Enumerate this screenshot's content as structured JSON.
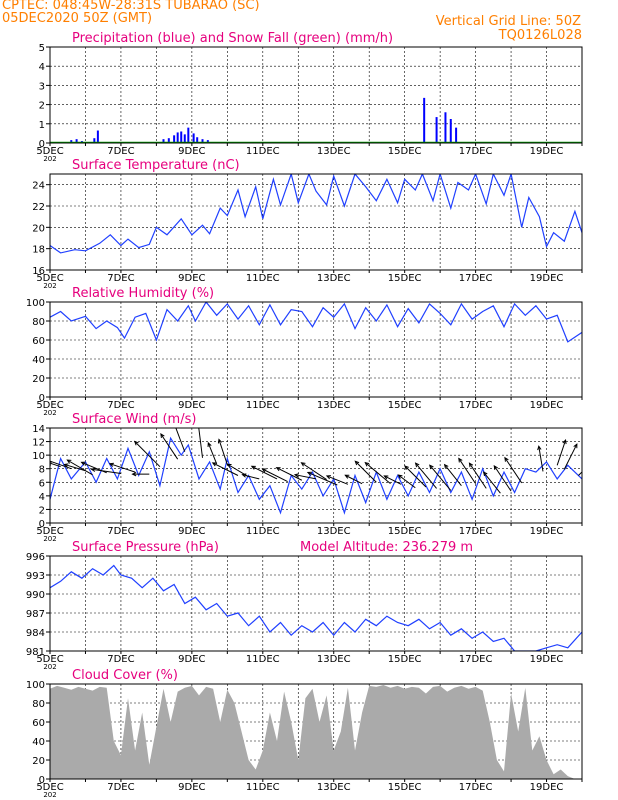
{
  "header": {
    "line1": "CPTEC:   048:45W-28:31S  TUBARAO (SC)",
    "line2": "05DEC2020 50Z (GMT)",
    "grid_note": "Vertical Grid Line: 50Z",
    "code": "TQ0126L028",
    "color": "#ff7f00"
  },
  "x_axis": {
    "start_label": "5DEC",
    "tick_labels": [
      "5DEC",
      "7DEC",
      "9DEC",
      "11DEC",
      "13DEC",
      "15DEC",
      "17DEC",
      "19DEC"
    ],
    "year_stub": "202",
    "range_days": [
      5,
      20
    ]
  },
  "colors": {
    "title": "#e6007e",
    "precip": "#0000ff",
    "snow": "#00a000",
    "line": "#2040ff",
    "wind_arrow": "#000000",
    "cloud": "#aaaaaa",
    "year_stub": "#ff7f00"
  },
  "chart_data": [
    {
      "id": "precip",
      "type": "bar",
      "title": "Precipitation (blue) and Snow Fall (green) (mm/h)",
      "ylim": [
        0,
        5
      ],
      "yticks": [
        0,
        1,
        2,
        3,
        4,
        5
      ],
      "grid": true,
      "precip": [
        [
          5.6,
          0.15
        ],
        [
          5.75,
          0.2
        ],
        [
          5.9,
          0.1
        ],
        [
          6.25,
          0.25
        ],
        [
          6.35,
          0.65
        ],
        [
          8.2,
          0.2
        ],
        [
          8.35,
          0.25
        ],
        [
          8.5,
          0.4
        ],
        [
          8.6,
          0.55
        ],
        [
          8.7,
          0.6
        ],
        [
          8.8,
          0.45
        ],
        [
          8.9,
          0.8
        ],
        [
          9.05,
          0.5
        ],
        [
          9.15,
          0.3
        ],
        [
          9.3,
          0.2
        ],
        [
          9.45,
          0.15
        ],
        [
          15.55,
          2.35
        ],
        [
          15.9,
          1.35
        ],
        [
          16.15,
          1.6
        ],
        [
          16.3,
          1.25
        ],
        [
          16.45,
          0.8
        ]
      ],
      "snow": []
    },
    {
      "id": "temp",
      "type": "line",
      "title": "Surface Temperature (nC)",
      "ylim": [
        16,
        25
      ],
      "yticks": [
        16,
        18,
        20,
        22,
        24
      ],
      "grid": true,
      "x": [
        5.0,
        5.3,
        5.7,
        6.0,
        6.4,
        6.7,
        7.0,
        7.2,
        7.5,
        7.8,
        8.0,
        8.3,
        8.7,
        9.0,
        9.3,
        9.5,
        9.8,
        10.0,
        10.3,
        10.5,
        10.8,
        11.0,
        11.3,
        11.5,
        11.8,
        12.0,
        12.3,
        12.5,
        12.8,
        13.0,
        13.3,
        13.6,
        13.9,
        14.2,
        14.5,
        14.8,
        15.0,
        15.3,
        15.5,
        15.8,
        16.0,
        16.3,
        16.5,
        16.8,
        17.0,
        17.3,
        17.5,
        17.8,
        18.0,
        18.3,
        18.5,
        18.8,
        19.0,
        19.2,
        19.5,
        19.8,
        20.0
      ],
      "y": [
        18.3,
        17.6,
        17.9,
        17.8,
        18.5,
        19.3,
        18.3,
        18.9,
        18.1,
        18.4,
        20.0,
        19.3,
        20.8,
        19.3,
        20.2,
        19.4,
        21.8,
        21.1,
        23.5,
        21.0,
        23.8,
        20.8,
        24.5,
        22.1,
        25.5,
        22.3,
        26.0,
        23.4,
        22.1,
        24.8,
        22.0,
        26.5,
        23.8,
        22.5,
        24.5,
        22.3,
        24.5,
        23.5,
        25.0,
        22.5,
        25.8,
        21.8,
        24.2,
        23.5,
        25.0,
        22.2,
        26.0,
        23.0,
        26.5,
        20.0,
        22.8,
        21.0,
        18.2,
        19.5,
        18.7,
        21.5,
        19.5
      ]
    },
    {
      "id": "rh",
      "type": "line",
      "title": "Relative Humidity (%)",
      "ylim": [
        0,
        100
      ],
      "yticks": [
        0,
        20,
        40,
        60,
        80,
        100
      ],
      "grid": true,
      "x": [
        5.0,
        5.3,
        5.6,
        6.0,
        6.3,
        6.6,
        6.9,
        7.1,
        7.4,
        7.7,
        8.0,
        8.3,
        8.6,
        8.9,
        9.1,
        9.4,
        9.7,
        10.0,
        10.3,
        10.6,
        10.9,
        11.2,
        11.5,
        11.8,
        12.1,
        12.4,
        12.7,
        13.0,
        13.3,
        13.6,
        13.9,
        14.2,
        14.5,
        14.8,
        15.1,
        15.4,
        15.7,
        16.0,
        16.3,
        16.6,
        16.9,
        17.2,
        17.5,
        17.8,
        18.1,
        18.4,
        18.7,
        19.0,
        19.3,
        19.6,
        20.0
      ],
      "y": [
        84,
        90,
        80,
        85,
        72,
        80,
        73,
        62,
        84,
        88,
        60,
        92,
        80,
        96,
        80,
        100,
        86,
        98,
        82,
        96,
        76,
        97,
        76,
        92,
        90,
        74,
        94,
        84,
        98,
        72,
        94,
        80,
        97,
        74,
        93,
        78,
        98,
        88,
        76,
        98,
        82,
        90,
        96,
        74,
        98,
        86,
        96,
        82,
        86,
        58,
        68
      ]
    },
    {
      "id": "wind",
      "type": "line",
      "title": "Surface Wind (m/s)",
      "ylim": [
        0,
        14
      ],
      "yticks": [
        0,
        2,
        4,
        6,
        8,
        10,
        12,
        14
      ],
      "grid": true,
      "x": [
        5.0,
        5.3,
        5.6,
        6.0,
        6.3,
        6.6,
        6.9,
        7.2,
        7.5,
        7.8,
        8.1,
        8.4,
        8.7,
        8.9,
        9.2,
        9.5,
        9.8,
        10.0,
        10.3,
        10.6,
        10.9,
        11.2,
        11.5,
        11.8,
        12.1,
        12.4,
        12.7,
        13.0,
        13.3,
        13.6,
        13.9,
        14.2,
        14.5,
        14.8,
        15.1,
        15.4,
        15.7,
        16.0,
        16.3,
        16.6,
        16.9,
        17.2,
        17.5,
        17.8,
        18.1,
        18.4,
        18.7,
        19.0,
        19.3,
        19.6,
        20.0
      ],
      "y": [
        3.5,
        9.5,
        6.5,
        9.0,
        6.0,
        9.5,
        6.5,
        11.0,
        7.0,
        10.5,
        5.5,
        12.5,
        10.0,
        11.5,
        6.5,
        9.0,
        5.0,
        9.5,
        4.5,
        7.0,
        3.5,
        5.5,
        1.5,
        7.0,
        5.0,
        7.5,
        4.0,
        6.5,
        1.5,
        7.0,
        3.0,
        7.5,
        3.5,
        7.0,
        4.0,
        7.5,
        4.5,
        8.0,
        4.5,
        7.5,
        3.5,
        8.0,
        4.0,
        7.5,
        4.5,
        8.0,
        7.5,
        9.0,
        6.5,
        8.5,
        6.5
      ],
      "arrows": [
        [
          5.3,
          8.3,
          3,
          -1
        ],
        [
          5.6,
          8.0,
          7,
          -2.5
        ],
        [
          6.0,
          7.7,
          5,
          -1.5
        ],
        [
          6.2,
          7.1,
          6,
          -3.5
        ],
        [
          6.6,
          7.4,
          6,
          -2.5
        ],
        [
          7.0,
          7.3,
          7,
          -1
        ],
        [
          7.4,
          7.5,
          6,
          -2
        ],
        [
          7.8,
          7.2,
          4,
          0
        ],
        [
          8.1,
          8.3,
          6,
          -6
        ],
        [
          8.6,
          9.4,
          4,
          -6
        ],
        [
          8.8,
          10.5,
          3,
          -8
        ],
        [
          9.3,
          9.6,
          1,
          -8
        ],
        [
          9.7,
          8.7,
          2,
          -5
        ],
        [
          10.0,
          8.6,
          2,
          -6
        ],
        [
          10.3,
          7.0,
          6,
          -3
        ],
        [
          10.6,
          6.8,
          5,
          -3
        ],
        [
          10.9,
          6.5,
          4,
          -1
        ],
        [
          11.4,
          6.5,
          6,
          -3
        ],
        [
          11.7,
          6.1,
          6,
          -3
        ],
        [
          12.1,
          6.3,
          6,
          -3
        ],
        [
          12.5,
          6.5,
          5,
          -1
        ],
        [
          12.8,
          6.4,
          6,
          -4
        ],
        [
          13.1,
          5.6,
          7,
          -3
        ],
        [
          13.4,
          5.7,
          5,
          -2
        ],
        [
          13.8,
          5.8,
          4,
          -2
        ],
        [
          14.2,
          6.0,
          5,
          -5
        ],
        [
          14.6,
          5.8,
          6,
          -5
        ],
        [
          14.9,
          5.7,
          4,
          -2
        ],
        [
          15.3,
          5.2,
          4,
          -3
        ],
        [
          15.6,
          5.3,
          5,
          -5
        ],
        [
          15.9,
          5.1,
          5,
          -6
        ],
        [
          16.3,
          4.8,
          5,
          -6
        ],
        [
          16.6,
          5.5,
          4,
          -5
        ],
        [
          17.0,
          5.8,
          4,
          -6
        ],
        [
          17.3,
          5.1,
          4,
          -6
        ],
        [
          17.7,
          4.4,
          4,
          -5
        ],
        [
          18.0,
          4.7,
          4,
          -6
        ],
        [
          18.3,
          5.9,
          4,
          -6
        ],
        [
          18.9,
          7.6,
          1,
          -6
        ],
        [
          19.3,
          8.5,
          -2,
          -6
        ],
        [
          19.5,
          7.9,
          -3,
          -6
        ],
        [
          19.9,
          7.0,
          -4,
          -4
        ]
      ]
    },
    {
      "id": "pressure",
      "type": "line",
      "title": "Surface Pressure (hPa)",
      "annotation": "Model Altitude: 236.279  m",
      "ylim": [
        981,
        996
      ],
      "yticks": [
        981,
        984,
        987,
        990,
        993,
        996
      ],
      "grid": true,
      "x": [
        5.0,
        5.3,
        5.6,
        5.9,
        6.2,
        6.5,
        6.8,
        7.0,
        7.3,
        7.6,
        7.9,
        8.2,
        8.5,
        8.8,
        9.1,
        9.4,
        9.7,
        10.0,
        10.3,
        10.6,
        10.9,
        11.2,
        11.5,
        11.8,
        12.1,
        12.4,
        12.7,
        13.0,
        13.3,
        13.6,
        13.9,
        14.2,
        14.5,
        14.8,
        15.1,
        15.4,
        15.7,
        16.0,
        16.3,
        16.6,
        16.9,
        17.2,
        17.5,
        17.8,
        18.1,
        18.4,
        18.7,
        19.0,
        19.3,
        19.6,
        20.0
      ],
      "y": [
        991.0,
        992.0,
        993.5,
        992.5,
        994.0,
        993.0,
        994.5,
        993.0,
        992.5,
        991.0,
        992.5,
        990.5,
        991.5,
        988.5,
        989.5,
        987.5,
        988.5,
        986.5,
        987.0,
        985.0,
        986.5,
        984.0,
        985.5,
        983.5,
        985.0,
        984.0,
        985.5,
        983.5,
        985.5,
        984.0,
        986.0,
        985.0,
        986.5,
        985.5,
        985.0,
        986.0,
        984.5,
        985.5,
        983.5,
        984.5,
        983.0,
        984.0,
        982.5,
        983.0,
        981.0,
        980.5,
        979.5,
        981.5,
        982.0,
        981.5,
        984.0
      ]
    },
    {
      "id": "cloud",
      "type": "bar",
      "title": "Cloud Cover (%)",
      "ylim": [
        0,
        100
      ],
      "yticks": [
        0,
        20,
        40,
        60,
        80,
        100
      ],
      "grid": true,
      "x": [
        5.0,
        5.2,
        5.4,
        5.6,
        5.8,
        6.0,
        6.2,
        6.4,
        6.6,
        6.8,
        7.0,
        7.2,
        7.4,
        7.6,
        7.8,
        8.0,
        8.2,
        8.4,
        8.6,
        8.8,
        9.0,
        9.2,
        9.4,
        9.6,
        9.8,
        10.0,
        10.2,
        10.4,
        10.6,
        10.8,
        11.0,
        11.2,
        11.4,
        11.6,
        11.8,
        12.0,
        12.2,
        12.4,
        12.6,
        12.8,
        13.0,
        13.2,
        13.4,
        13.6,
        13.8,
        14.0,
        14.2,
        14.4,
        14.6,
        14.8,
        15.0,
        15.2,
        15.4,
        15.6,
        15.8,
        16.0,
        16.2,
        16.4,
        16.6,
        16.8,
        17.0,
        17.2,
        17.4,
        17.6,
        17.8,
        18.0,
        18.2,
        18.4,
        18.6,
        18.8,
        19.0,
        19.2,
        19.4,
        19.6,
        19.8
      ],
      "y": [
        95,
        98,
        96,
        94,
        97,
        95,
        93,
        97,
        96,
        40,
        25,
        85,
        30,
        70,
        15,
        55,
        95,
        60,
        92,
        96,
        98,
        88,
        97,
        95,
        60,
        94,
        80,
        50,
        20,
        10,
        30,
        70,
        40,
        92,
        60,
        20,
        85,
        95,
        60,
        88,
        30,
        50,
        96,
        30,
        70,
        98,
        97,
        99,
        96,
        98,
        95,
        97,
        96,
        90,
        97,
        98,
        92,
        96,
        98,
        95,
        97,
        93,
        60,
        20,
        8,
        90,
        50,
        96,
        30,
        45,
        20,
        5,
        10,
        3,
        0
      ]
    }
  ]
}
